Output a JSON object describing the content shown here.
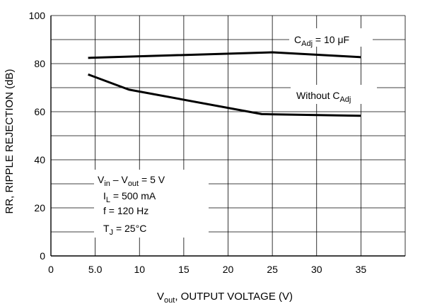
{
  "chart_data": {
    "type": "line",
    "xlabel_main": "V",
    "xlabel_sub": "out",
    "xlabel_rest": ", OUTPUT VOLTAGE (V)",
    "ylabel": "RR, RIPPLE REJECTION (dB)",
    "xlim": [
      0,
      40
    ],
    "ylim": [
      0,
      100
    ],
    "xticks": [
      0,
      5,
      10,
      15,
      20,
      25,
      30,
      35
    ],
    "xtick_labels": [
      "0",
      "5.0",
      "10",
      "15",
      "20",
      "25",
      "30",
      "35"
    ],
    "yticks": [
      0,
      20,
      40,
      60,
      80,
      100
    ],
    "ytick_labels": [
      "0",
      "20",
      "40",
      "60",
      "80",
      "100"
    ],
    "grid": true,
    "series": [
      {
        "name_main": "C",
        "name_sub": "Adj",
        "name_rest": " = 10 μF",
        "x": [
          4.2,
          25,
          35
        ],
        "y": [
          82.4,
          84.7,
          82.7
        ]
      },
      {
        "name_main": "Without C",
        "name_sub": "Adj",
        "x": [
          4.2,
          8.8,
          23.8,
          35
        ],
        "y": [
          75.5,
          69.2,
          59.0,
          58.3
        ]
      }
    ],
    "conditions": [
      {
        "main": "V",
        "sub": "in",
        "rest": " – V",
        "sub2": "out",
        "rest2": " = 5 V"
      },
      {
        "main": "I",
        "sub": "L",
        "rest": " = 500 mA"
      },
      {
        "main": "f = 120 Hz"
      },
      {
        "main": "T",
        "sub": "J",
        "rest": " = 25°C"
      }
    ]
  }
}
